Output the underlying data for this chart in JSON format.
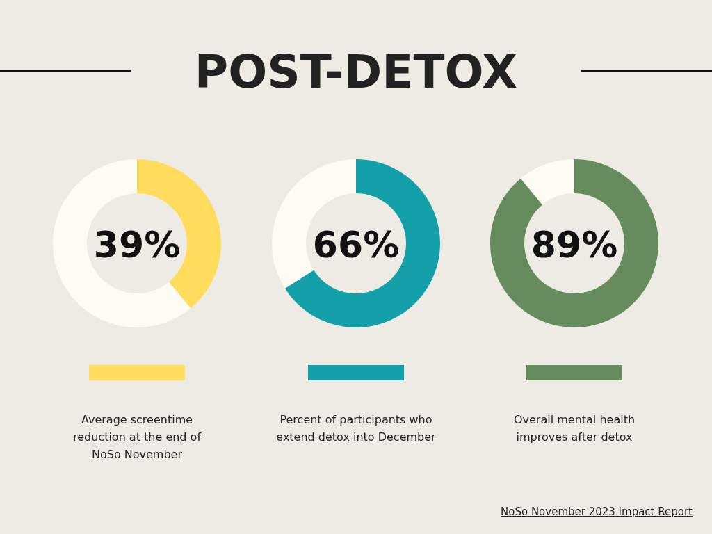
{
  "chart_data": [
    {
      "type": "other",
      "title": "POST-DETOX"
    },
    {
      "type": "donut",
      "title": "Average screentime reduction at the end of NoSo November",
      "categories": [
        null,
        null
      ],
      "values": [
        39,
        61
      ],
      "colors": [
        "#ffdc5c",
        "#fdfbf3"
      ],
      "annotations": [
        "39%"
      ]
    },
    {
      "type": "donut",
      "title": "Percent of participants who extend detox into December",
      "categories": [
        null,
        null
      ],
      "values": [
        66,
        34
      ],
      "colors": [
        "#13a0a8",
        "#fdfbf3"
      ],
      "annotations": [
        "66%"
      ]
    },
    {
      "type": "donut",
      "title": "Overall mental health improves after detox",
      "categories": [
        null,
        null
      ],
      "values": [
        89,
        11
      ],
      "colors": [
        "#668c5d",
        "#fdfbf3"
      ],
      "annotations": [
        "89%",
        "NoSo November 2023 Impact Report"
      ]
    }
  ]
}
